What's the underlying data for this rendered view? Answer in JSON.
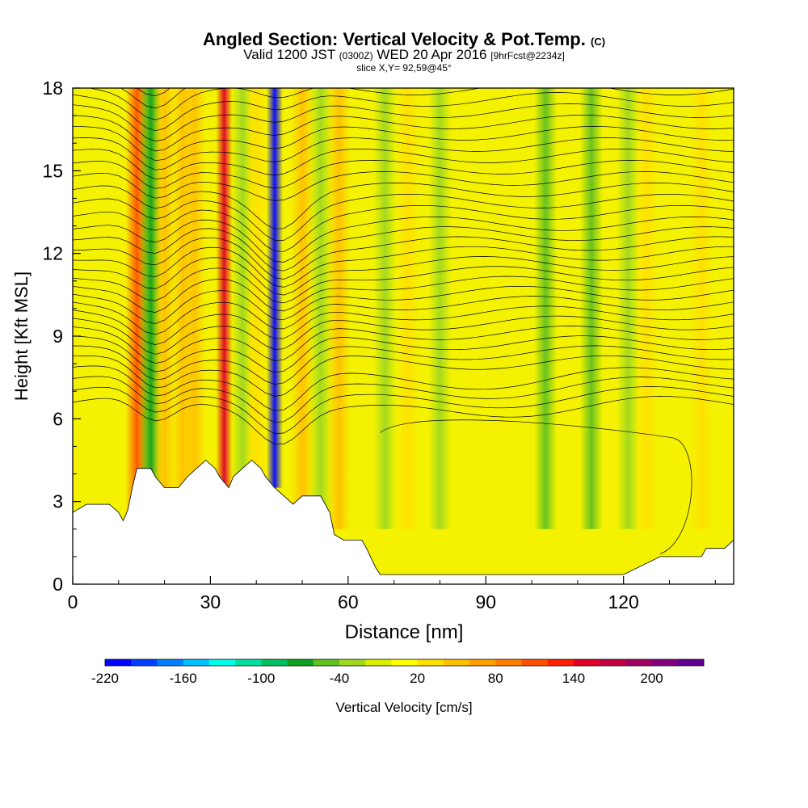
{
  "title": {
    "main": "Angled Section: Vertical Velocity & Pot.Temp.",
    "units_tag": "(C)",
    "valid_prefix": "Valid 1200 JST",
    "valid_utc": "(0300Z)",
    "valid_date": "WED 20 Apr 2016",
    "forecast": "[9hrFcst@2234z]",
    "slice": "slice X,Y= 92,59@45°"
  },
  "colorbar": {
    "label": "Vertical Velocity [cm/s]",
    "tick_labels": [
      "-220",
      "-160",
      "-100",
      "-40",
      "20",
      "80",
      "140",
      "200"
    ],
    "colors": [
      "#0000ff",
      "#0040ff",
      "#0080ff",
      "#00bfff",
      "#00ffe6",
      "#00dfa0",
      "#00c060",
      "#10a020",
      "#60c020",
      "#a0d820",
      "#d8f000",
      "#ffff00",
      "#ffe000",
      "#ffc000",
      "#ff9f00",
      "#ff8000",
      "#ff5000",
      "#ff2000",
      "#e0002a",
      "#c00040",
      "#a00060",
      "#800080",
      "#600090"
    ]
  },
  "chart_data": {
    "type": "heatmap",
    "xlabel": "Distance [nm]",
    "ylabel": "Height [Kft MSL]",
    "xlim": [
      0,
      144
    ],
    "ylim": [
      0,
      18
    ],
    "x_ticks": [
      0,
      30,
      60,
      90,
      120
    ],
    "y_ticks": [
      0,
      3,
      6,
      9,
      12,
      15,
      18
    ],
    "value_range": [
      -220,
      220
    ],
    "columns": [
      {
        "x": 14,
        "w": 90
      },
      {
        "x": 17,
        "w": -90
      },
      {
        "x": 20,
        "w": 35
      },
      {
        "x": 24,
        "w": 40
      },
      {
        "x": 26.5,
        "w": 30
      },
      {
        "x": 33,
        "w": 130
      },
      {
        "x": 37,
        "w": -40
      },
      {
        "x": 40,
        "w": 20
      },
      {
        "x": 44,
        "w": -220
      },
      {
        "x": 50,
        "w": 45
      },
      {
        "x": 54,
        "w": -40
      },
      {
        "x": 58,
        "w": 30
      },
      {
        "x": 68,
        "w": -40
      },
      {
        "x": 73,
        "w": 20
      },
      {
        "x": 80,
        "w": -40
      },
      {
        "x": 103,
        "w": -55
      },
      {
        "x": 113,
        "w": -60
      },
      {
        "x": 121,
        "w": -50
      },
      {
        "x": 125,
        "w": 25
      },
      {
        "x": 137,
        "w": 20
      }
    ],
    "terrain": [
      [
        0,
        2.6
      ],
      [
        3,
        2.9
      ],
      [
        8,
        2.9
      ],
      [
        10,
        2.6
      ],
      [
        11,
        2.3
      ],
      [
        12,
        2.7
      ],
      [
        13,
        3.5
      ],
      [
        14,
        4.2
      ],
      [
        17,
        4.2
      ],
      [
        18,
        3.9
      ],
      [
        20,
        3.5
      ],
      [
        23,
        3.5
      ],
      [
        25,
        3.9
      ],
      [
        27,
        4.2
      ],
      [
        29,
        4.5
      ],
      [
        31,
        4.2
      ],
      [
        32,
        3.9
      ],
      [
        34,
        3.5
      ],
      [
        35,
        3.9
      ],
      [
        37,
        4.2
      ],
      [
        39,
        4.5
      ],
      [
        41,
        4.2
      ],
      [
        42,
        3.9
      ],
      [
        44,
        3.5
      ],
      [
        46,
        3.2
      ],
      [
        48,
        2.9
      ],
      [
        50,
        3.2
      ],
      [
        54,
        3.2
      ],
      [
        56,
        2.6
      ],
      [
        57,
        1.8
      ],
      [
        59,
        1.6
      ],
      [
        63,
        1.6
      ],
      [
        64,
        1.3
      ],
      [
        66,
        0.6
      ],
      [
        67,
        0.35
      ],
      [
        104,
        0.35
      ],
      [
        114,
        0.35
      ],
      [
        120,
        0.35
      ],
      [
        128,
        1.0
      ],
      [
        137,
        1.0
      ],
      [
        138,
        1.3
      ],
      [
        142,
        1.3
      ],
      [
        144,
        1.6
      ]
    ],
    "isentropes": "contour lines of potential temperature, roughly horizontal, packed above 6 Kft and dipping near x=15-20 and x=40-50"
  }
}
